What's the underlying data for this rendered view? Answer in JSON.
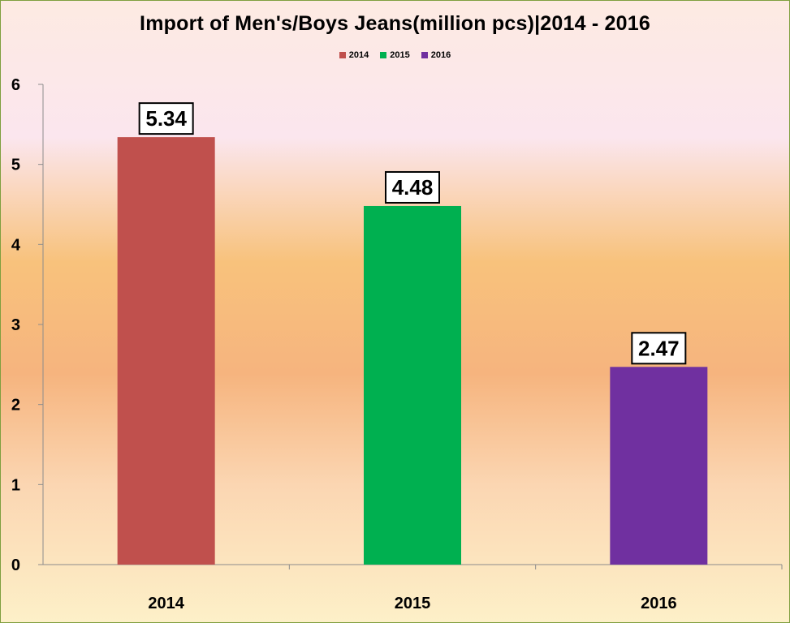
{
  "chart_data": {
    "type": "bar",
    "title": "Import of Men's/Boys Jeans(million pcs)|2014 - 2016",
    "xlabel": "",
    "ylabel": "",
    "categories": [
      "2014",
      "2015",
      "2016"
    ],
    "values": [
      5.34,
      4.48,
      2.47
    ],
    "data_labels": [
      "5.34",
      "4.48",
      "2.47"
    ],
    "colors": [
      "#c0504d",
      "#00b050",
      "#7030a0"
    ],
    "legend": [
      "2014",
      "2015",
      "2016"
    ],
    "legend_position": "top",
    "ylim": [
      0,
      6
    ],
    "yticks": [
      "0",
      "1",
      "2",
      "3",
      "4",
      "5",
      "6"
    ],
    "grid": false
  }
}
